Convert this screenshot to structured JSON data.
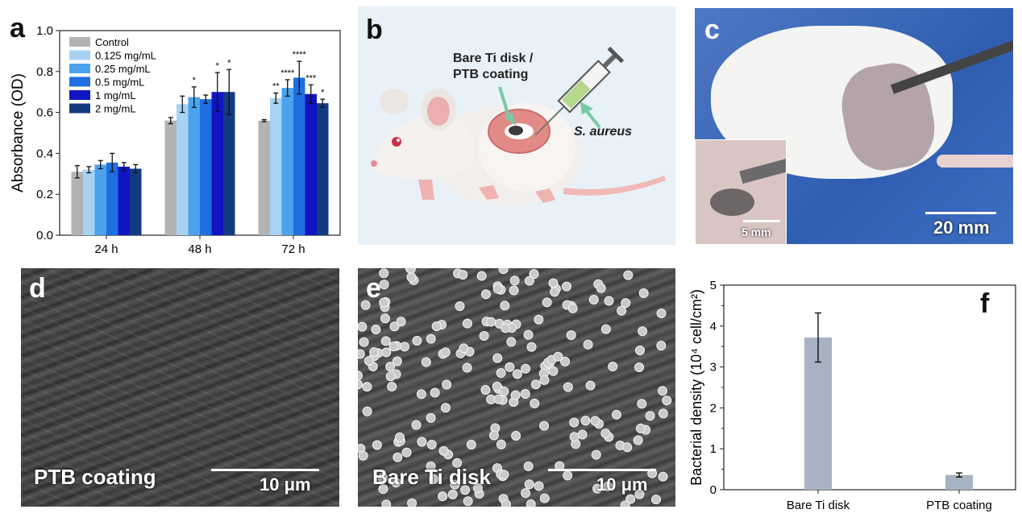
{
  "panels": {
    "a": {
      "label": "a",
      "chart_data": {
        "type": "bar",
        "ylabel": "Absorbance (OD)",
        "ylim": [
          0.0,
          1.0
        ],
        "yticks": [
          "0.0",
          "0.2",
          "0.4",
          "0.6",
          "0.8",
          "1.0"
        ],
        "categories": [
          "24 h",
          "48 h",
          "72 h"
        ],
        "legend_placement": "top-left",
        "series": [
          {
            "name": "Control",
            "color": "#b3b3b3",
            "values": [
              0.31,
              0.56,
              0.56
            ],
            "errors": [
              0.03,
              0.015,
              0.005
            ]
          },
          {
            "name": "0.125 mg/mL",
            "color": "#a8d2f3",
            "values": [
              0.32,
              0.64,
              0.67
            ],
            "errors": [
              0.015,
              0.04,
              0.025
            ]
          },
          {
            "name": "0.25 mg/mL",
            "color": "#4aa3ec",
            "values": [
              0.345,
              0.675,
              0.72
            ],
            "errors": [
              0.02,
              0.05,
              0.04
            ]
          },
          {
            "name": "0.5 mg/mL",
            "color": "#1f6fe0",
            "values": [
              0.355,
              0.665,
              0.77
            ],
            "errors": [
              0.045,
              0.02,
              0.08
            ]
          },
          {
            "name": "1 mg/mL",
            "color": "#1014c2",
            "values": [
              0.335,
              0.7,
              0.69
            ],
            "errors": [
              0.02,
              0.095,
              0.045
            ]
          },
          {
            "name": "2 mg/mL",
            "color": "#133a80",
            "values": [
              0.325,
              0.7,
              0.645
            ],
            "errors": [
              0.02,
              0.11,
              0.02
            ]
          }
        ],
        "significance": [
          [
            "",
            "",
            ""
          ],
          [
            "",
            "",
            "**"
          ],
          [
            "",
            "*",
            "****"
          ],
          [
            "",
            "",
            "****"
          ],
          [
            "",
            "*",
            "***"
          ],
          [
            "",
            "*",
            "*"
          ]
        ]
      }
    },
    "b": {
      "label": "b",
      "implant_label": "Bare Ti disk /\nPTB coating",
      "implant_line1": "Bare Ti disk /",
      "implant_line2": "PTB coating",
      "bacteria_label": "S. aureus"
    },
    "c": {
      "label": "c",
      "scale_main": "20 mm",
      "scale_inset": "5 mm"
    },
    "d": {
      "label": "d",
      "sample": "PTB coating",
      "scale": "10 μm"
    },
    "e": {
      "label": "e",
      "sample": "Bare Ti disk",
      "scale": "10 μm"
    },
    "f": {
      "label": "f",
      "chart_data": {
        "type": "bar",
        "ylabel": "Bacterial density (10⁴ cell/cm²)",
        "ylim": [
          0,
          5
        ],
        "yticks": [
          "0",
          "1",
          "2",
          "3",
          "4",
          "5"
        ],
        "categories": [
          "Bare Ti disk",
          "PTB coating"
        ],
        "values": [
          3.72,
          0.36
        ],
        "errors": [
          0.6,
          0.05
        ],
        "color": "#a7b2c3"
      }
    }
  }
}
